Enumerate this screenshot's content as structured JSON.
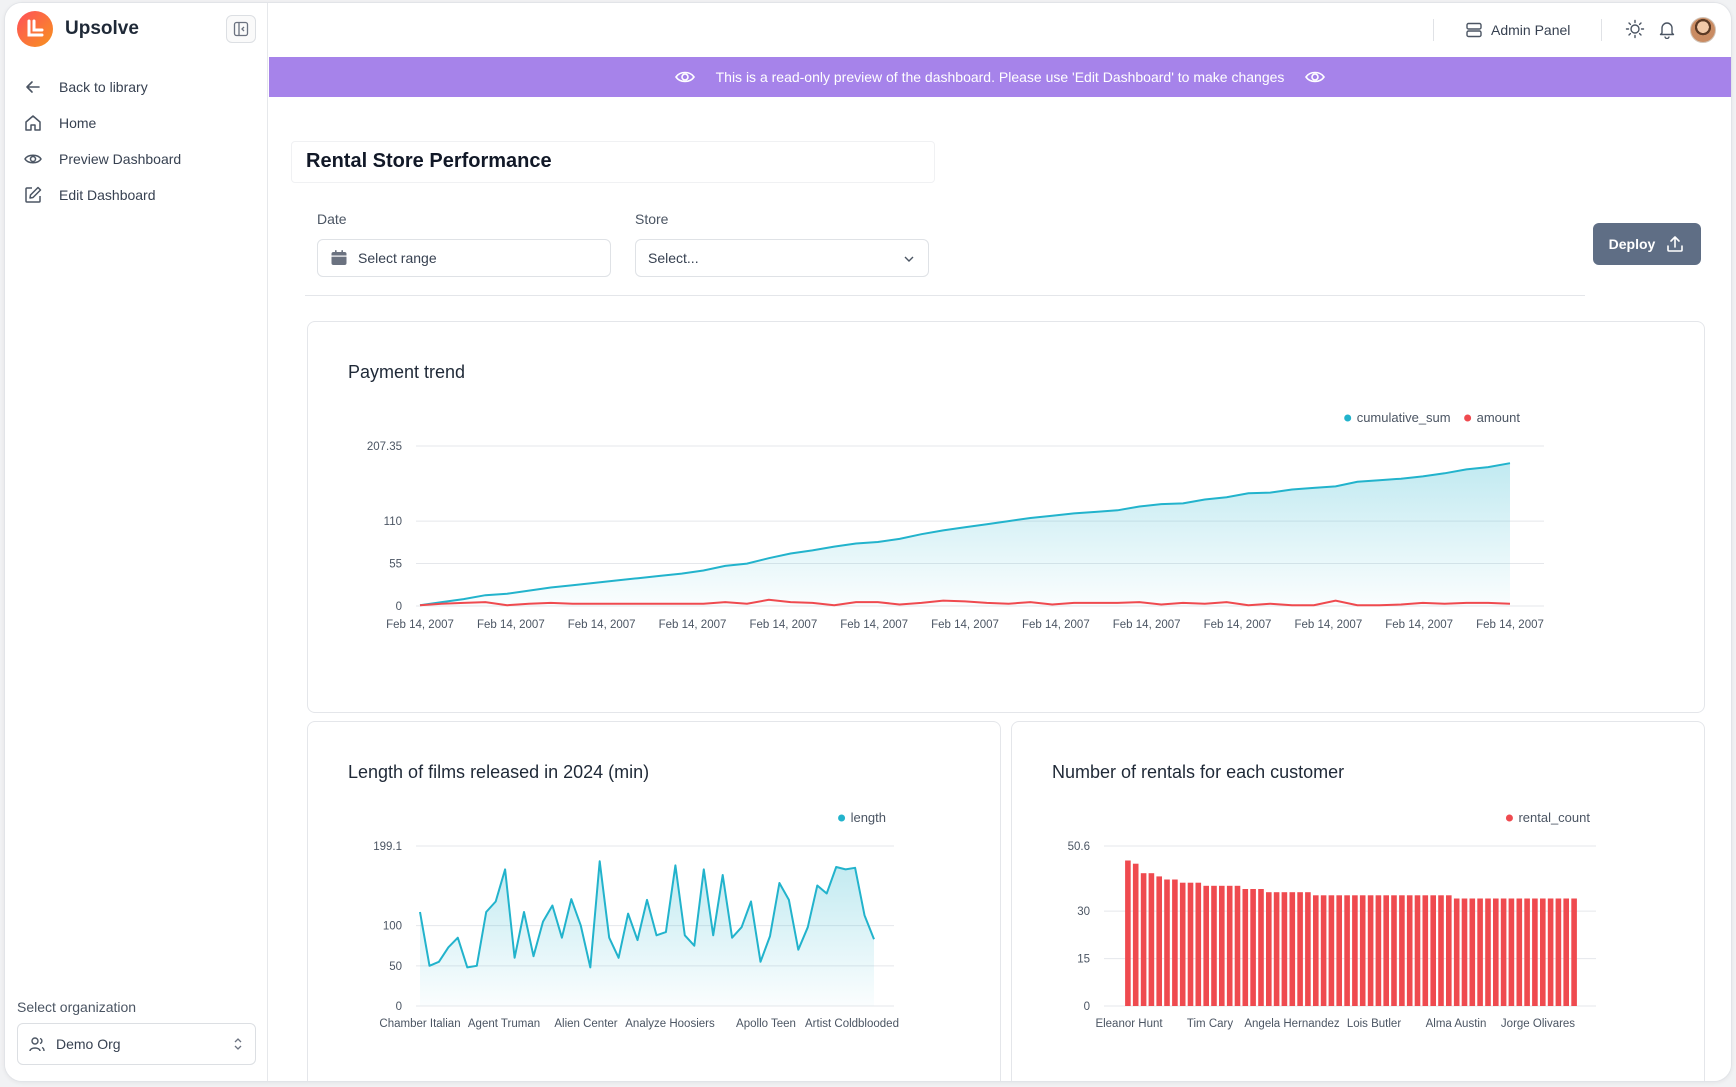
{
  "app": {
    "name": "Upsolve"
  },
  "sidebar": {
    "items": [
      {
        "label": "Back to library",
        "icon": "arrow-left-icon"
      },
      {
        "label": "Home",
        "icon": "home-icon"
      },
      {
        "label": "Preview Dashboard",
        "icon": "eye-icon"
      },
      {
        "label": "Edit Dashboard",
        "icon": "edit-icon"
      }
    ],
    "org_label": "Select organization",
    "org_value": "Demo Org"
  },
  "header": {
    "admin_label": "Admin Panel"
  },
  "banner": {
    "text": "This is a read-only preview of the dashboard. Please use 'Edit Dashboard' to make changes"
  },
  "dashboard": {
    "title": "Rental Store Performance",
    "filters": {
      "date_label": "Date",
      "date_placeholder": "Select range",
      "store_label": "Store",
      "store_placeholder": "Select..."
    },
    "deploy_label": "Deploy"
  },
  "colors": {
    "teal": "#22b3cc",
    "red": "#ef4a4f",
    "banner": "#a683ea",
    "deploy": "#5f6e85"
  },
  "chart_data": [
    {
      "type": "area",
      "title": "Payment trend",
      "legend": [
        "cumulative_sum",
        "amount"
      ],
      "yticks": [
        0,
        55,
        110,
        207.35
      ],
      "ylim": [
        0,
        207.35
      ],
      "xlabels": [
        "Feb 14, 2007",
        "Feb 14, 2007",
        "Feb 14, 2007",
        "Feb 14, 2007",
        "Feb 14, 2007",
        "Feb 14, 2007",
        "Feb 14, 2007",
        "Feb 14, 2007",
        "Feb 14, 2007",
        "Feb 14, 2007",
        "Feb 14, 2007",
        "Feb 14, 2007",
        "Feb 14, 2007"
      ],
      "series": [
        {
          "name": "cumulative_sum",
          "values": [
            1,
            5,
            9,
            14,
            16,
            20,
            24,
            27,
            30,
            33,
            36,
            39,
            42,
            46,
            52,
            55,
            62,
            68,
            72,
            77,
            81,
            83,
            87,
            93,
            98,
            102,
            106,
            110,
            114,
            117,
            120,
            122,
            124,
            129,
            132,
            133,
            138,
            141,
            146,
            147,
            151,
            153,
            155,
            161,
            163,
            165,
            168,
            172,
            177,
            180,
            185
          ]
        },
        {
          "name": "amount",
          "values": [
            1,
            3,
            4,
            5,
            1,
            3,
            4,
            3,
            3,
            3,
            3,
            3,
            3,
            3,
            5,
            3,
            8,
            5,
            4,
            1,
            5,
            5,
            2,
            4,
            7,
            6,
            4,
            3,
            5,
            2,
            4,
            4,
            4,
            5,
            2,
            4,
            3,
            5,
            1,
            3,
            1,
            1,
            7,
            1,
            1,
            2,
            4,
            3,
            4,
            4,
            3
          ]
        }
      ]
    },
    {
      "type": "area",
      "title": "Length of films released in 2024 (min)",
      "legend": [
        "length"
      ],
      "yticks": [
        0,
        50,
        100,
        199.1
      ],
      "ylim": [
        0,
        199.1
      ],
      "xlabels": [
        "Chamber Italian",
        "Agent Truman",
        "Alien Center",
        "Analyze Hoosiers",
        "Apollo Teen",
        "Artist Coldblooded"
      ],
      "series": [
        {
          "name": "length",
          "values": [
            117,
            50,
            55,
            73,
            85,
            48,
            50,
            117,
            130,
            170,
            60,
            117,
            62,
            105,
            125,
            85,
            133,
            100,
            48,
            180,
            85,
            60,
            115,
            82,
            132,
            88,
            92,
            175,
            88,
            75,
            170,
            88,
            163,
            85,
            98,
            130,
            55,
            87,
            153,
            132,
            70,
            98,
            150,
            140,
            173,
            170,
            172,
            113,
            83
          ]
        }
      ]
    },
    {
      "type": "bar",
      "title": "Number of rentals for each customer",
      "legend": [
        "rental_count"
      ],
      "yticks": [
        0,
        15,
        30,
        50.6
      ],
      "ylim": [
        0,
        50.6
      ],
      "xlabels": [
        "Eleanor Hunt",
        "Tim Cary",
        "Angela Hernandez",
        "Lois Butler",
        "Alma Austin",
        "Jorge Olivares"
      ],
      "series": [
        {
          "name": "rental_count",
          "values": [
            46,
            45,
            42,
            42,
            41,
            40,
            40,
            39,
            39,
            39,
            38,
            38,
            38,
            38,
            38,
            37,
            37,
            37,
            36,
            36,
            36,
            36,
            36,
            36,
            35,
            35,
            35,
            35,
            35,
            35,
            35,
            35,
            35,
            35,
            35,
            35,
            35,
            35,
            35,
            35,
            35,
            35,
            34,
            34,
            34,
            34,
            34,
            34,
            34,
            34,
            34,
            34,
            34,
            34,
            34,
            34,
            34,
            34
          ]
        }
      ]
    }
  ]
}
